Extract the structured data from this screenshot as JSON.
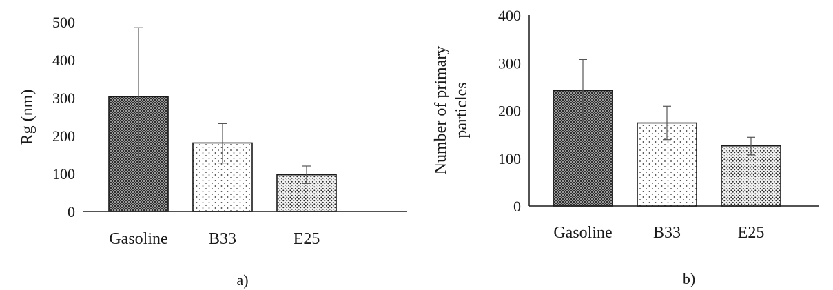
{
  "chart_data": [
    {
      "type": "bar",
      "panel_label": "a)",
      "categories": [
        "Gasoline",
        "B33",
        "E25"
      ],
      "values": [
        303,
        181,
        97
      ],
      "error_bars": [
        {
          "low": 118,
          "high": 485
        },
        {
          "low": 128,
          "high": 232
        },
        {
          "low": 74,
          "high": 120
        }
      ],
      "ylabel": "Rg (nm)",
      "xlabel": "",
      "ylim": [
        0,
        500
      ],
      "yticks": [
        "0",
        "100",
        "200",
        "300",
        "400",
        "500"
      ],
      "grid": false,
      "legend": "none",
      "patterns": [
        "dense-dark",
        "sparse-dots",
        "medium-dots"
      ]
    },
    {
      "type": "bar",
      "panel_label": "b)",
      "categories": [
        "Gasoline",
        "B33",
        "E25"
      ],
      "values": [
        242,
        174,
        126
      ],
      "error_bars": [
        {
          "low": 178,
          "high": 307
        },
        {
          "low": 139,
          "high": 209
        },
        {
          "low": 107,
          "high": 144
        }
      ],
      "ylabel": [
        "Number of primary",
        "particles"
      ],
      "xlabel": "",
      "ylim": [
        0,
        400
      ],
      "yticks": [
        "0",
        "100",
        "200",
        "300",
        "400"
      ],
      "grid": false,
      "legend": "none",
      "patterns": [
        "dense-dark",
        "sparse-dots",
        "medium-dots"
      ]
    }
  ]
}
